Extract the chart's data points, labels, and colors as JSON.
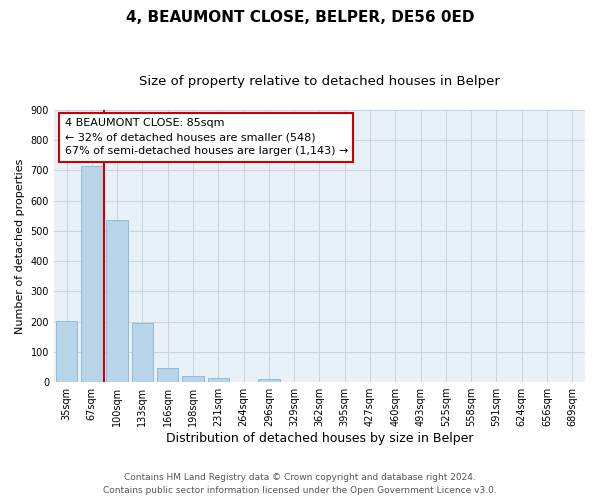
{
  "title": "4, BEAUMONT CLOSE, BELPER, DE56 0ED",
  "subtitle": "Size of property relative to detached houses in Belper",
  "xlabel": "Distribution of detached houses by size in Belper",
  "ylabel": "Number of detached properties",
  "categories": [
    "35sqm",
    "67sqm",
    "100sqm",
    "133sqm",
    "166sqm",
    "198sqm",
    "231sqm",
    "264sqm",
    "296sqm",
    "329sqm",
    "362sqm",
    "395sqm",
    "427sqm",
    "460sqm",
    "493sqm",
    "525sqm",
    "558sqm",
    "591sqm",
    "624sqm",
    "656sqm",
    "689sqm"
  ],
  "values": [
    203,
    714,
    537,
    194,
    46,
    21,
    14,
    0,
    9,
    0,
    0,
    0,
    0,
    0,
    0,
    0,
    0,
    0,
    0,
    0,
    0
  ],
  "bar_color": "#b8d4e8",
  "bar_edge_color": "#8ab4d4",
  "vline_x": 1.5,
  "vline_color": "#cc0000",
  "annotation_line1": "4 BEAUMONT CLOSE: 85sqm",
  "annotation_line2": "← 32% of detached houses are smaller (548)",
  "annotation_line3": "67% of semi-detached houses are larger (1,143) →",
  "annotation_box_facecolor": "#ffffff",
  "annotation_box_edgecolor": "#cc0000",
  "ylim": [
    0,
    900
  ],
  "yticks": [
    0,
    100,
    200,
    300,
    400,
    500,
    600,
    700,
    800,
    900
  ],
  "footer_line1": "Contains HM Land Registry data © Crown copyright and database right 2024.",
  "footer_line2": "Contains public sector information licensed under the Open Government Licence v3.0.",
  "background_color": "#ffffff",
  "plot_bg_color": "#e8f0f8",
  "grid_color": "#c8d4e4",
  "title_fontsize": 11,
  "subtitle_fontsize": 9.5,
  "xlabel_fontsize": 9,
  "ylabel_fontsize": 8,
  "tick_fontsize": 7,
  "annotation_fontsize": 8,
  "footer_fontsize": 6.5
}
